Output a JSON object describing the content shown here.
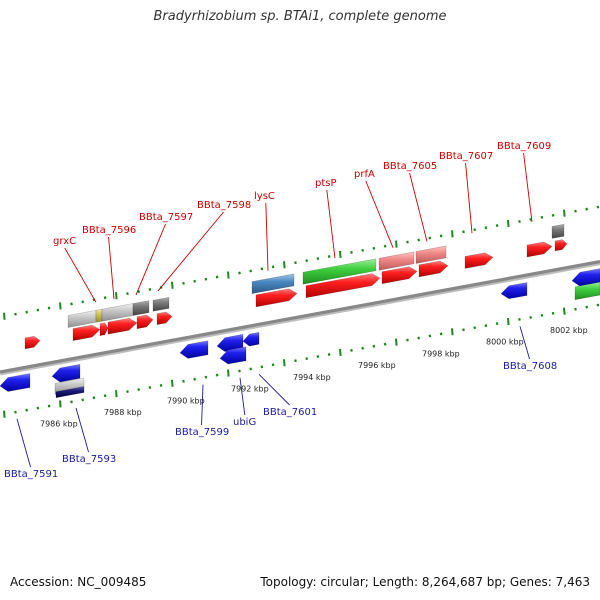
{
  "title": "Bradyrhizobium sp. BTAi1, complete genome",
  "footer": {
    "accession": "Accession: NC_009485",
    "topology": "Topology: circular; Length: 8,264,687 bp; Genes: 7,463"
  },
  "colors": {
    "top_strand_label": "#cc0000",
    "bottom_strand_label": "#1a1aa0",
    "backbone": "#888888",
    "tick": "#1a8a1a",
    "forward_gene": "#ee1111",
    "reverse_gene": "#1818dd",
    "rna_gene": "#33bb33",
    "pseudo_gene": "#777777",
    "misc_feature": "#4a88c0"
  },
  "scale": {
    "labels": [
      "7986 kbp",
      "7988 kbp",
      "7990 kbp",
      "7992 kbp",
      "7994 kbp",
      "7996 kbp",
      "7998 kbp",
      "8000 kbp",
      "8002 kbp"
    ]
  },
  "genes": {
    "top": [
      "grxC",
      "BBta_7596",
      "BBta_7597",
      "BBta_7598",
      "lysC",
      "ptsP",
      "prfA",
      "BBta_7605",
      "BBta_7607",
      "BBta_7609"
    ],
    "bottom": [
      "BBta_7591",
      "BBta_7593",
      "BBta_7599",
      "ubiG",
      "BBta_7601",
      "BBta_7608"
    ]
  }
}
